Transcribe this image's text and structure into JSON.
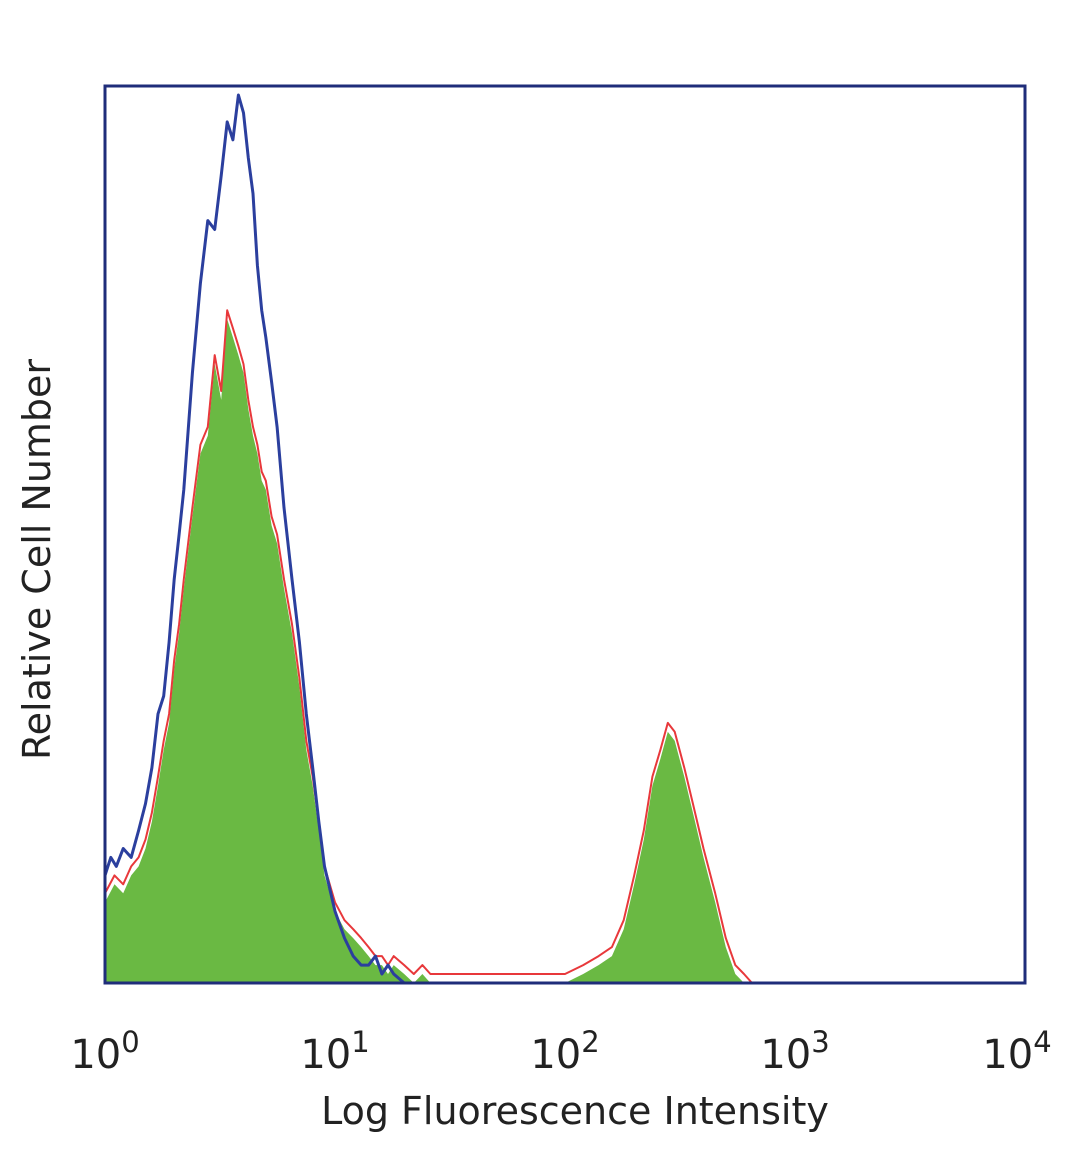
{
  "chart_data": {
    "type": "area",
    "xscale": "log",
    "xlabel": "Log Fluorescence Intensity",
    "ylabel": "Relative Cell Number",
    "xlim": [
      1,
      10000
    ],
    "ylim": [
      0,
      100
    ],
    "xticks": [
      {
        "base": "10",
        "exp": "0",
        "value": 1
      },
      {
        "base": "10",
        "exp": "1",
        "value": 10
      },
      {
        "base": "10",
        "exp": "2",
        "value": 100
      },
      {
        "base": "10",
        "exp": "3",
        "value": 1000
      },
      {
        "base": "10",
        "exp": "4",
        "value": 10000
      }
    ],
    "grid": false,
    "legend": "none",
    "colors": {
      "filled": "#6ab943",
      "red": "#e8383b",
      "blue": "#2b3f9e",
      "frame": "#1f2d7a"
    },
    "series": [
      {
        "style": "blue-outline",
        "x": [
          1.0,
          1.06,
          1.12,
          1.2,
          1.3,
          1.4,
          1.5,
          1.6,
          1.7,
          1.8,
          1.9,
          2.0,
          2.1,
          2.2,
          2.4,
          2.6,
          2.8,
          3.0,
          3.2,
          3.4,
          3.6,
          3.8,
          4.0,
          4.2,
          4.4,
          4.6,
          4.8,
          5.0,
          5.3,
          5.6,
          6.0,
          6.5,
          7.0,
          7.5,
          8.0,
          8.5,
          9.0,
          10.0,
          11.0,
          12.0,
          13.0,
          14.0,
          15.0,
          16.0,
          17.0,
          18.0,
          20.0
        ],
        "y": [
          12,
          14,
          13,
          15,
          14,
          17,
          20,
          24,
          30,
          32,
          38,
          45,
          50,
          55,
          68,
          78,
          85,
          84,
          90,
          96,
          94,
          99,
          97,
          92,
          88,
          80,
          75,
          72,
          67,
          62,
          53,
          45,
          38,
          30,
          24,
          18,
          13,
          8,
          5,
          3,
          2,
          2,
          3,
          1,
          2,
          1,
          0
        ]
      },
      {
        "style": "red-outline",
        "x": [
          1.0,
          1.1,
          1.2,
          1.3,
          1.4,
          1.5,
          1.6,
          1.7,
          1.8,
          1.9,
          2.0,
          2.1,
          2.2,
          2.4,
          2.6,
          2.8,
          3.0,
          3.2,
          3.4,
          3.6,
          3.8,
          4.0,
          4.2,
          4.4,
          4.6,
          4.8,
          5.0,
          5.3,
          5.6,
          6.0,
          6.5,
          7.0,
          7.5,
          8.0,
          8.5,
          9.0,
          10.0,
          11.0,
          12.0,
          13.0,
          14.0,
          15.0,
          16.0,
          17.0,
          18.0,
          20.0,
          22.0,
          24.0,
          26.0,
          30.0,
          40.0,
          60.0,
          80.0,
          100.0,
          120.0,
          140.0,
          160.0,
          180.0,
          200.0,
          220.0,
          240.0,
          260.0,
          280.0,
          300.0,
          330.0,
          360.0,
          400.0,
          450.0,
          500.0,
          550.0,
          600.0,
          650.0
        ],
        "y": [
          10,
          12,
          11,
          13,
          14,
          16,
          19,
          23,
          27,
          30,
          36,
          40,
          45,
          53,
          60,
          62,
          70,
          66,
          75,
          73,
          71,
          69,
          65,
          62,
          60,
          57,
          56,
          52,
          50,
          45,
          40,
          34,
          27,
          23,
          18,
          13,
          9,
          7,
          6,
          5,
          4,
          3,
          3,
          2,
          3,
          2,
          1,
          2,
          1,
          1,
          1,
          1,
          1,
          1,
          2,
          3,
          4,
          7,
          12,
          17,
          23,
          26,
          29,
          28,
          24,
          20,
          15,
          10,
          5,
          2,
          1,
          0
        ]
      },
      {
        "style": "green-fill",
        "x": [
          1.0,
          1.1,
          1.2,
          1.3,
          1.4,
          1.5,
          1.6,
          1.7,
          1.8,
          1.9,
          2.0,
          2.1,
          2.2,
          2.4,
          2.6,
          2.8,
          3.0,
          3.2,
          3.4,
          3.6,
          3.8,
          4.0,
          4.2,
          4.4,
          4.6,
          4.8,
          5.0,
          5.3,
          5.6,
          6.0,
          6.5,
          7.0,
          7.5,
          8.0,
          8.5,
          9.0,
          10.0,
          11.0,
          12.0,
          13.0,
          14.0,
          15.0,
          16.0,
          17.0,
          18.0,
          20.0,
          22.0,
          24.0,
          26.0,
          30.0,
          40.0,
          60.0,
          80.0,
          100.0,
          120.0,
          140.0,
          160.0,
          180.0,
          200.0,
          220.0,
          240.0,
          260.0,
          280.0,
          300.0,
          330.0,
          360.0,
          400.0,
          450.0,
          500.0,
          550.0,
          600.0,
          650.0
        ],
        "y": [
          9,
          11,
          10,
          12,
          13,
          15,
          18,
          22,
          26,
          29,
          35,
          39,
          44,
          52,
          59,
          61,
          69,
          65,
          74,
          72,
          70,
          68,
          64,
          61,
          59,
          56,
          55,
          51,
          49,
          44,
          39,
          33,
          26,
          22,
          17,
          12,
          8,
          6,
          5,
          4,
          3,
          2,
          2,
          1,
          2,
          1,
          0,
          1,
          0,
          0,
          0,
          0,
          0,
          0,
          1,
          2,
          3,
          6,
          11,
          16,
          22,
          25,
          28,
          27,
          23,
          19,
          14,
          9,
          4,
          1,
          0,
          0
        ]
      }
    ]
  }
}
